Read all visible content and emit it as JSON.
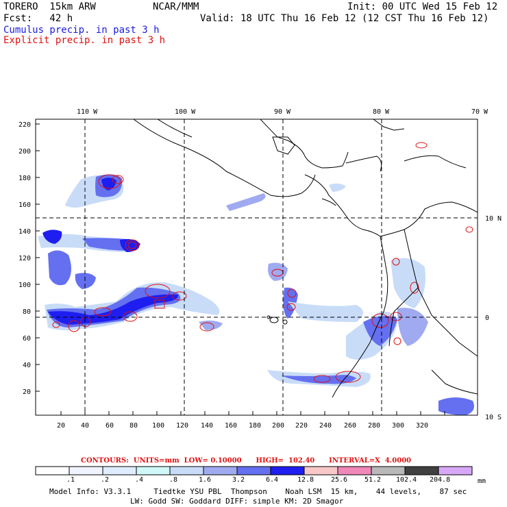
{
  "header": {
    "model": "TORERO  15km ARW",
    "org": "NCAR/MMM",
    "init": "Init: 00 UTC Wed 15 Feb 12",
    "fcst": "Fcst:   42 h",
    "valid": "Valid: 18 UTC Thu 16 Feb 12 (12 CST Thu 16 Feb 12)",
    "legend_cumulus": "Cumulus precip. in past 3 h",
    "legend_explicit": "Explicit precip. in past 3 h"
  },
  "map": {
    "lon_labels": [
      "110 W",
      "100 W",
      "90 W",
      "80 W",
      "70 W"
    ],
    "lat_labels": [
      "10 N",
      "0",
      "10 S"
    ],
    "y_ticks": [
      "220",
      "200",
      "180",
      "160",
      "140",
      "120",
      "100",
      "80",
      "60",
      "40",
      "20"
    ],
    "x_ticks": [
      "20",
      "40",
      "60",
      "80",
      "100",
      "120",
      "140",
      "160",
      "180",
      "200",
      "220",
      "240",
      "260",
      "280",
      "300",
      "320"
    ]
  },
  "footer": {
    "contours_label": "CONTOURS:  UNITS=mm  LOW= 0.10000      HIGH=  102.40      INTERVAL=X  4.0000",
    "colorbar_levels": [
      ".1",
      ".2",
      ".4",
      ".8",
      "1.6",
      "3.2",
      "6.4",
      "12.8",
      "25.6",
      "51.2",
      "102.4",
      "204.8"
    ],
    "colorbar_unit": "mm",
    "colorbar_colors": [
      "#ffffff",
      "#f0f4ff",
      "#e0ecff",
      "#d0f8f8",
      "#c8dcf8",
      "#a0aaf0",
      "#6470f0",
      "#1e1ef0",
      "#f8c8c8",
      "#f088b8",
      "#b8b8b8",
      "#404040",
      "#d8a8f8"
    ],
    "info_line1": "Model Info: V3.3.1     Tiedtke YSU PBL  Thompson    Noah LSM  15 km,    44 levels,    87 sec",
    "info_line2": "LW: Godd SW: Goddard DIFF: simple KM: 2D Smagor"
  }
}
